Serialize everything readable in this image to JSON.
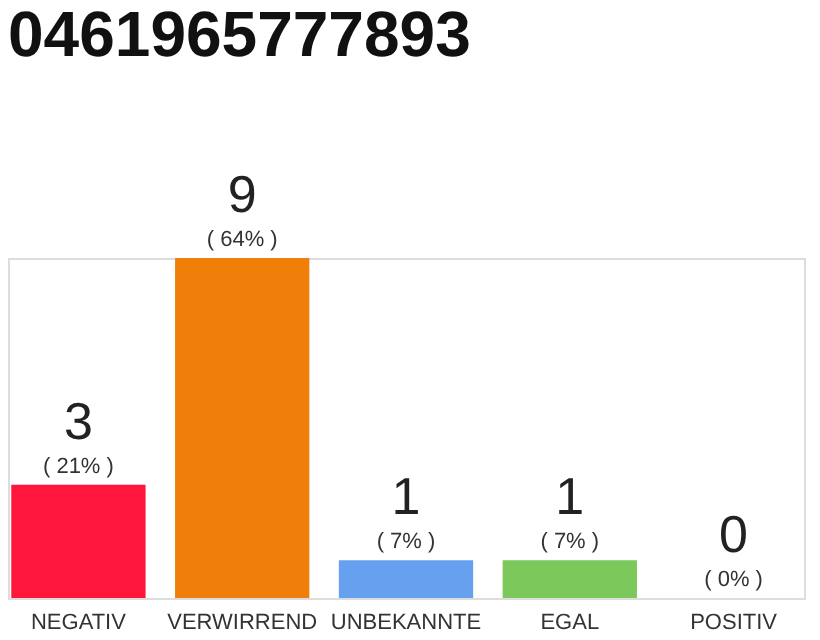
{
  "chart_data": {
    "type": "bar",
    "title": "0461965777893",
    "categories": [
      "NEGATIV",
      "VERWIRREND",
      "UNBEKANNTE",
      "EGAL",
      "POSITIV"
    ],
    "values": [
      3,
      9,
      1,
      1,
      0
    ],
    "colors": [
      "#ff163c",
      "#f07f0a",
      "#67a0ef",
      "#7dc85a",
      "#22aa44"
    ],
    "ylim": [
      0,
      9
    ],
    "data_labels": true,
    "annotations": [
      "( 21% )",
      "( 64% )",
      "( 7% )",
      "( 7% )",
      "( 0% )"
    ],
    "tick_labels": "x"
  }
}
